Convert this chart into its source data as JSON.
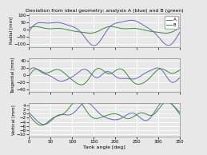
{
  "title": "Deviation from ideal geometry: analysis A (blue) and B (green)",
  "xlabel": "Tank angle [deg]",
  "ylabel_radial": "Radial [mm]",
  "ylabel_tangential": "Tangential [mm]",
  "ylabel_vertical": "Vertical [mm]",
  "legend_A": "A",
  "legend_B": "B",
  "color_A": "#6666bb",
  "color_B": "#3a8a3a",
  "background": "#e8e8e8",
  "grid_color": "#ffffff",
  "radial_ylim": [
    -120,
    110
  ],
  "tangential_ylim": [
    -45,
    45
  ],
  "vertical_ylim": [
    -11,
    5
  ],
  "xticks": [
    0,
    50,
    100,
    150,
    200,
    250,
    300,
    350
  ],
  "radial_yticks": [
    -100,
    -50,
    0,
    50,
    100
  ],
  "tangential_yticks": [
    -40,
    -20,
    0,
    20,
    40
  ],
  "vertical_yticks": [
    -10,
    -8,
    -6,
    -4,
    -2,
    0,
    2,
    4
  ]
}
